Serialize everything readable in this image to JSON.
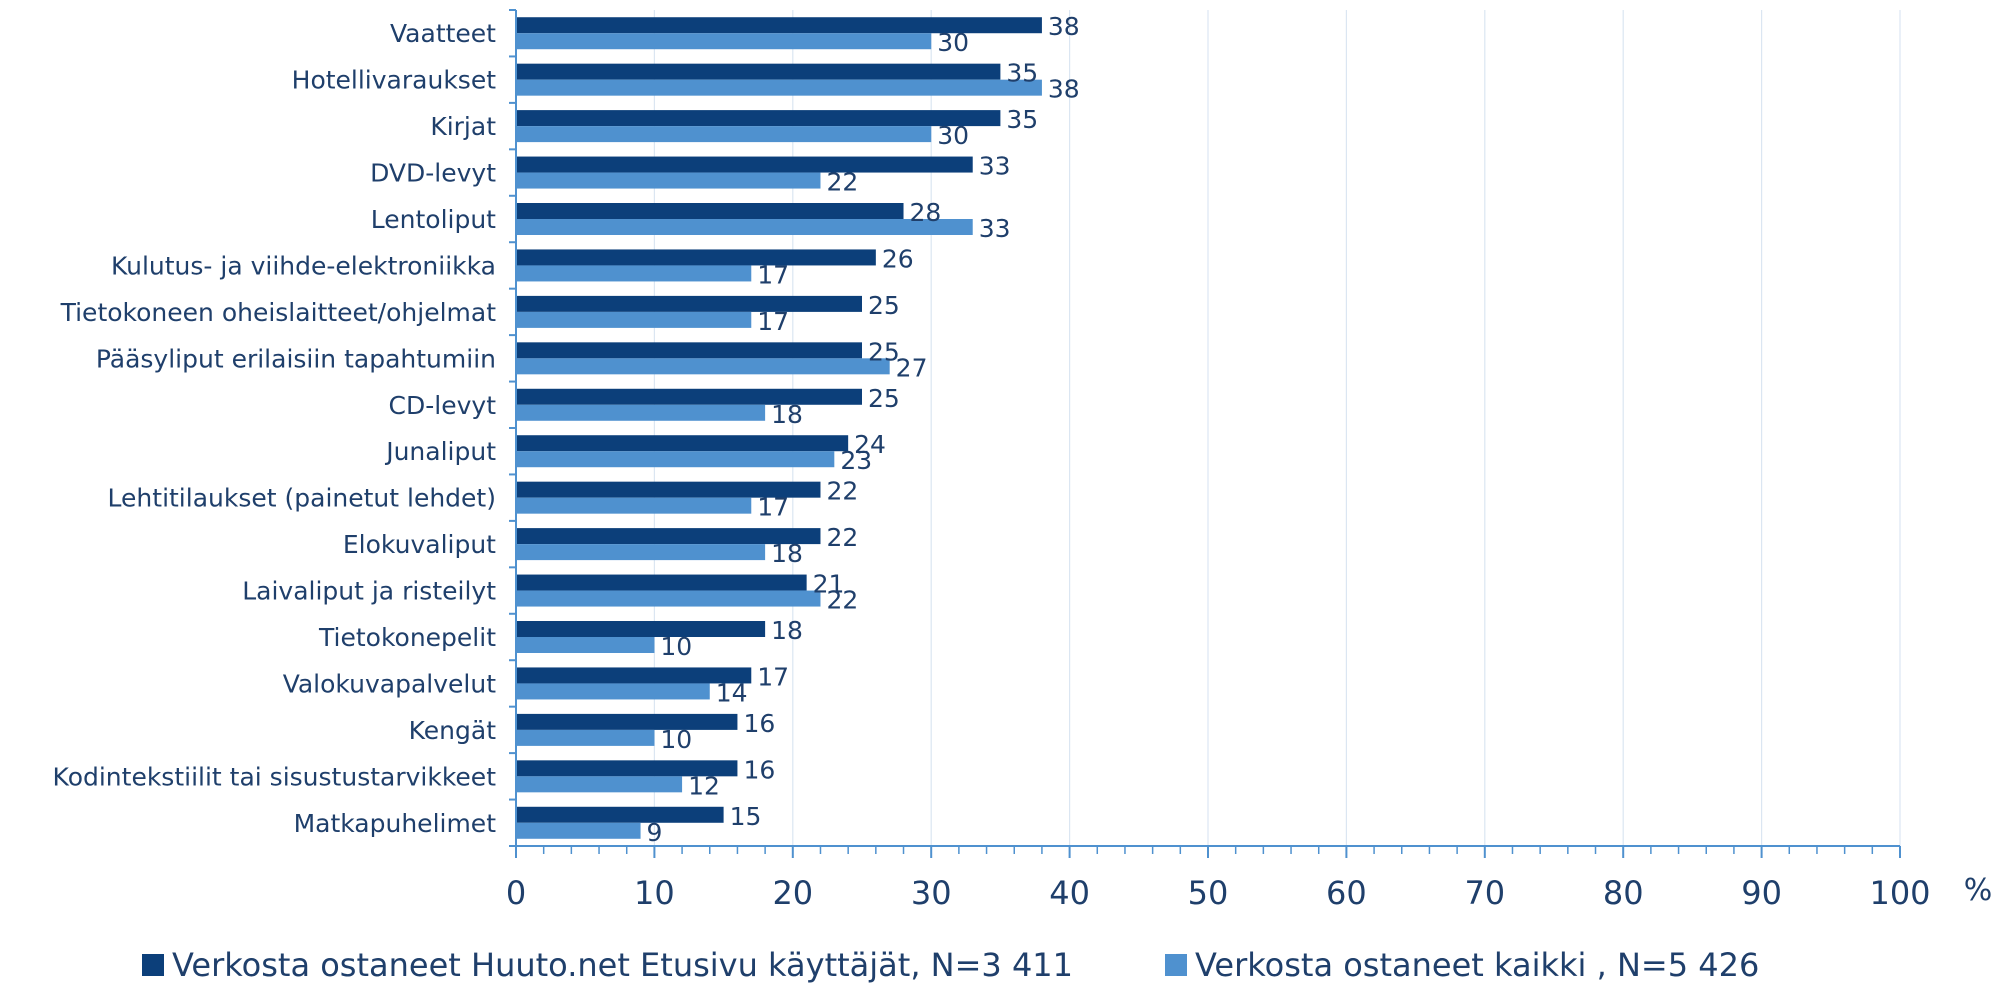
{
  "chart_data": {
    "type": "bar",
    "orientation": "horizontal",
    "categories": [
      "Vaatteet",
      "Hotellivaraukset",
      "Kirjat",
      "DVD-levyt",
      "Lentoliput",
      "Kulutus- ja viihde-elektroniikka",
      "Tietokoneen oheislaitteet/ohjelmat",
      "Pääsyliput erilaisiin tapahtumiin",
      "CD-levyt",
      "Junaliput",
      "Lehtitilaukset (painetut lehdet)",
      "Elokuvaliput",
      "Laivaliput ja risteilyt",
      "Tietokonepelit",
      "Valokuvapalvelut",
      "Kengät",
      "Kodintekstiilit tai sisustustarvikkeet",
      "Matkapuhelimet"
    ],
    "series": [
      {
        "name": "Verkosta ostaneet Huuto.net Etusivu käyttäjät, N=3 411",
        "color": "#0c3f7a",
        "values": [
          38,
          35,
          35,
          33,
          28,
          26,
          25,
          25,
          25,
          24,
          22,
          22,
          21,
          18,
          17,
          16,
          16,
          15
        ]
      },
      {
        "name": "Verkosta ostaneet kaikki , N=5 426",
        "color": "#4f91cf",
        "values": [
          30,
          38,
          30,
          22,
          33,
          17,
          17,
          27,
          18,
          23,
          17,
          18,
          22,
          10,
          14,
          10,
          12,
          9
        ]
      }
    ],
    "xlim": [
      0,
      100
    ],
    "x_ticks": [
      0,
      10,
      20,
      30,
      40,
      50,
      60,
      70,
      80,
      90,
      100
    ],
    "unit_label": "%",
    "grid": true,
    "legend_position": "bottom",
    "data_labels": true,
    "colors": {
      "text": "#1f3f6b",
      "grid": "#dbe6f2",
      "axis": "#4f91cf"
    }
  }
}
